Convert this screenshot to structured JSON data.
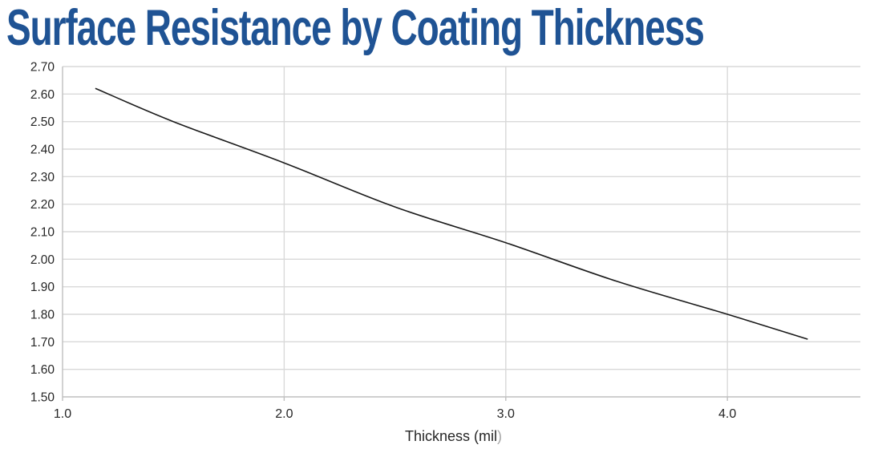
{
  "title": {
    "text": "Surface Resistance by Coating Thickness",
    "color": "#1F5394"
  },
  "axes": {
    "y_tick_labels": [
      "2.70",
      "2.60",
      "2.50",
      "2.40",
      "2.30",
      "2.20",
      "2.10",
      "2.00",
      "1.90",
      "1.80",
      "1.70",
      "1.60",
      "1.50"
    ],
    "x_tick_labels": [
      "1.0",
      "2.0",
      "3.0",
      "4.0"
    ],
    "x_axis_title_main": "Thickness (mil",
    "x_axis_title_paren": ")"
  },
  "colors": {
    "title_blue": "#1F5394",
    "gridline": "#D9D9D9",
    "axis_line": "#BFBFBF",
    "series_line": "#1A1A1A",
    "tick_label": "#262626",
    "axis_title_text": "#262626",
    "paren_gray": "#A6A6A6",
    "background": "#FFFFFF"
  },
  "chart_data": {
    "type": "line",
    "title": "Surface Resistance by Coating Thickness",
    "xlabel": "Thickness (mil)",
    "ylabel": "",
    "series": [
      {
        "name": "Surface Resistance",
        "x": [
          1.15,
          1.5,
          2.0,
          2.5,
          3.0,
          3.5,
          4.0,
          4.36
        ],
        "y": [
          2.62,
          2.5,
          2.35,
          2.19,
          2.06,
          1.92,
          1.8,
          1.71
        ]
      }
    ],
    "xlim": [
      1.0,
      4.6
    ],
    "ylim": [
      1.5,
      2.7
    ],
    "x_ticks": [
      1.0,
      2.0,
      3.0,
      4.0
    ],
    "y_ticks": [
      1.5,
      1.6,
      1.7,
      1.8,
      1.9,
      2.0,
      2.1,
      2.2,
      2.3,
      2.4,
      2.5,
      2.6,
      2.7
    ],
    "grid": true,
    "legend": false,
    "line_width": 1.6
  }
}
